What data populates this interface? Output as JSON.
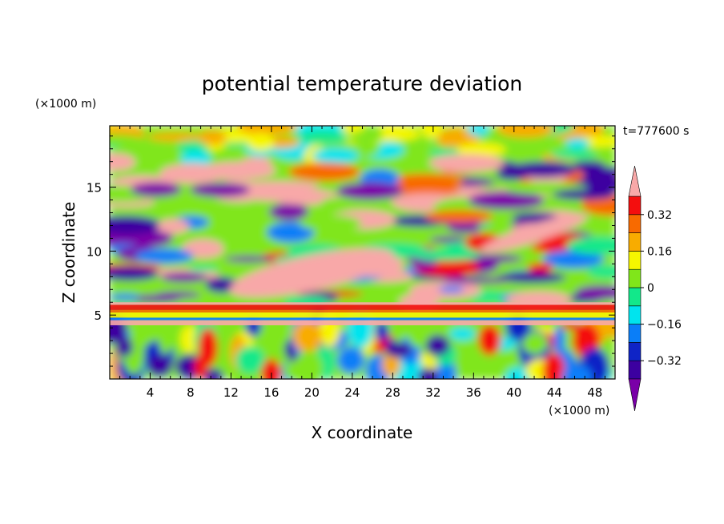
{
  "chart_data": {
    "type": "heatmap",
    "title": "potential temperature deviation",
    "time_label": "t=777600 s",
    "xlabel": "X coordinate",
    "ylabel": "Z coordinate",
    "x_unit": "(×1000 m)",
    "y_unit": "(×1000 m)",
    "xlim": [
      0,
      50
    ],
    "ylim": [
      0,
      19.8
    ],
    "x_ticks": [
      4,
      8,
      12,
      16,
      20,
      24,
      28,
      32,
      36,
      40,
      44,
      48
    ],
    "x_tick_labels": [
      "4",
      "8",
      "12",
      "16",
      "20",
      "24",
      "28",
      "32",
      "36",
      "40",
      "44",
      "48"
    ],
    "x_minor_step": 1,
    "y_ticks": [
      5,
      10,
      15
    ],
    "y_tick_labels": [
      "5",
      "10",
      "15"
    ],
    "y_minor_step": 1,
    "colorbar": {
      "levels": [
        -0.4,
        -0.32,
        -0.24,
        -0.16,
        -0.08,
        0,
        0.08,
        0.16,
        0.24,
        0.32,
        0.4
      ],
      "tick_values": [
        0.32,
        0.16,
        0,
        -0.16,
        -0.32
      ],
      "tick_labels": [
        "0.32",
        "0.16",
        "0",
        "−0.16",
        "−0.32"
      ],
      "colors": [
        "#7a00a8",
        "#3c00a0",
        "#0f24c6",
        "#0a7ef8",
        "#00e4ee",
        "#12e88a",
        "#80e61a",
        "#f6f600",
        "#f8ac00",
        "#f86a00",
        "#f40e0e",
        "#f8a8a8"
      ],
      "extend": "both"
    },
    "field": {
      "description_bands": [
        {
          "z_range": [
            0,
            4.2
          ],
          "character": "near-neutral turbulent field, mixed blues, greens, yellows and reds"
        },
        {
          "z_range": [
            4.2,
            5.8
          ],
          "character": "thin horizontal stripes: pink, red, yellow, blue"
        },
        {
          "z_range": [
            5.8,
            17
          ],
          "character": "alternating large pink and purple anomalies"
        },
        {
          "z_range": [
            17,
            19.8
          ],
          "character": "mostly green and yellow near zero"
        }
      ]
    }
  }
}
